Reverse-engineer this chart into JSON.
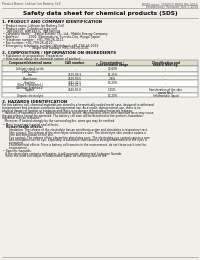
{
  "bg_color": "#f0efea",
  "title": "Safety data sheet for chemical products (SDS)",
  "header_left": "Product Name: Lithium Ion Battery Cell",
  "header_right_line1": "BU/Division: CU0002/ BRDS-BN-0010",
  "header_right_line2": "Established / Revision: Dec.7.2018",
  "section1_title": "1. PRODUCT AND COMPANY IDENTIFICATION",
  "section1_lines": [
    " • Product name: Lithium Ion Battery Cell",
    " • Product code: Cylindrical-type cell",
    "     INR18650J, INR18650L, INR18650A",
    " • Company name:    Sanyo Electric Co., Ltd., Mobile Energy Company",
    " • Address:          2001  Kamimakura, Sumoto-City, Hyogo, Japan",
    " • Telephone number:  +81-799-26-4111",
    " • Fax number: +81-799-26-4120",
    " • Emergency telephone number (Weekdays) +81-799-26-2062",
    "                              (Night and holiday) +81-799-26-4101"
  ],
  "section2_title": "2. COMPOSITION / INFORMATION ON INGREDIENTS",
  "section2_sub": " • Substance or preparation: Preparation",
  "section2_sub2": " • Information about the chemical nature of product:",
  "tbl_hdr": [
    "Component/chemical name",
    "CAS number",
    "Concentration /\nConcentration range",
    "Classification and\nhazard labeling"
  ],
  "tbl_rows": [
    [
      "Lithium cobalt oxide\n(LiMn₂CoO₂)",
      "-",
      "20-60%",
      "-"
    ],
    [
      "Iron",
      "7439-89-6",
      "15-25%",
      "-"
    ],
    [
      "Aluminium",
      "7429-90-5",
      "2-8%",
      "-"
    ],
    [
      "Graphite\n(Kind of graphite1)\n(All flake graphite1)",
      "7782-42-5\n7782-42-5",
      "10-20%",
      "-"
    ],
    [
      "Copper",
      "7440-50-8",
      "5-15%",
      "Sensitization of the skin\ngroup No.2"
    ],
    [
      "Organic electrolyte",
      "-",
      "10-20%",
      "Inflammable liquid"
    ]
  ],
  "section3_title": "3. HAZARDS IDENTIFICATION",
  "section3_lines": [
    "For this battery cell, chemical materials are stored in a hermetically sealed metal case, designed to withstand",
    "temperatures and pressure-conditions during normal use. As a result, during normal use, there is no",
    "physical danger of ignition or explosion and there is no danger of hazardous materials leakage.",
    "   However, if exposed to a fire, added mechanical shocks, decomposed, when electromotive force may cause",
    "the gas release cannot be operated. The battery cell case will be breached or fire-portions, hazardous",
    "materials may be released.",
    "   Moreover, if heated strongly by the surrounding fire, some gas may be emitted."
  ],
  "section3_bullet1": " • Most important hazard and effects:",
  "section3_human": "    Human health effects:",
  "section3_human_lines": [
    "        Inhalation: The release of the electrolyte has an anesthesia action and stimulates a respiratory tract.",
    "        Skin contact: The release of the electrolyte stimulates a skin. The electrolyte skin contact causes a",
    "        sore and stimulation on the skin.",
    "        Eye contact: The release of the electrolyte stimulates eyes. The electrolyte eye contact causes a sore",
    "        and stimulation on the eye. Especially, a substance that causes a strong inflammation of the eyes is",
    "        contained.",
    "        Environmental effects: Since a battery cell remains in the environment, do not throw out it into the",
    "        environment."
  ],
  "section3_bullet2": " • Specific hazards:",
  "section3_specific": [
    "    If the electrolyte contacts with water, it will generate detrimental hydrogen fluoride.",
    "    Since the used electrolyte is inflammable liquid, do not bring close to fire."
  ]
}
